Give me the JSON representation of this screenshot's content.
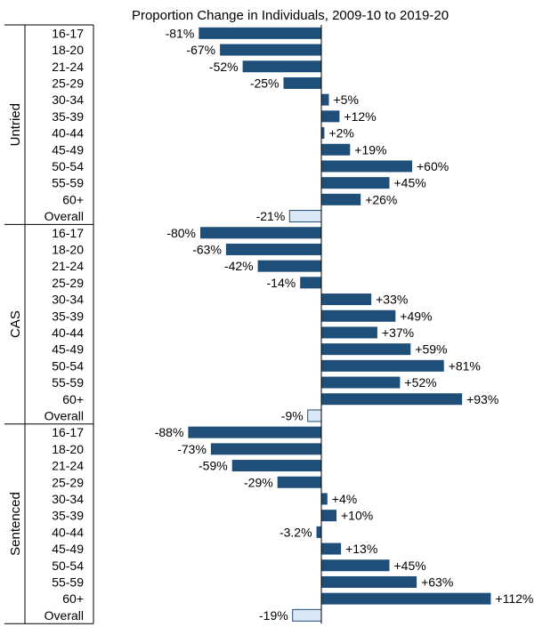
{
  "chart_data": {
    "type": "bar",
    "orientation": "horizontal",
    "title": "Proportion Change in Individuals, 2009-10 to 2019-20",
    "colors": {
      "bar": "#1f4e79",
      "overall_bar": "#dae8f5",
      "overall_border": "#1f4e79"
    },
    "groups": [
      {
        "name": "Untried",
        "categories": [
          "16-17",
          "18-20",
          "21-24",
          "25-29",
          "30-34",
          "35-39",
          "40-44",
          "45-49",
          "50-54",
          "55-59",
          "60+",
          "Overall"
        ],
        "values": [
          -81,
          -67,
          -52,
          -25,
          5,
          12,
          2,
          19,
          60,
          45,
          26,
          -21
        ],
        "labels": [
          "-81%",
          "-67%",
          "-52%",
          "-25%",
          "+5%",
          "+12%",
          "+2%",
          "+19%",
          "+60%",
          "+45%",
          "+26%",
          "-21%"
        ]
      },
      {
        "name": "CAS",
        "categories": [
          "16-17",
          "18-20",
          "21-24",
          "25-29",
          "30-34",
          "35-39",
          "40-44",
          "45-49",
          "50-54",
          "55-59",
          "60+",
          "Overall"
        ],
        "values": [
          -80,
          -63,
          -42,
          -14,
          33,
          49,
          37,
          59,
          81,
          52,
          93,
          -9
        ],
        "labels": [
          "-80%",
          "-63%",
          "-42%",
          "-14%",
          "+33%",
          "+49%",
          "+37%",
          "+59%",
          "+81%",
          "+52%",
          "+93%",
          "-9%"
        ]
      },
      {
        "name": "Sentenced",
        "categories": [
          "16-17",
          "18-20",
          "21-24",
          "25-29",
          "30-34",
          "35-39",
          "40-44",
          "45-49",
          "50-54",
          "55-59",
          "60+",
          "Overall"
        ],
        "values": [
          -88,
          -73,
          -59,
          -29,
          4,
          10,
          -3.2,
          13,
          45,
          63,
          112,
          -19
        ],
        "labels": [
          "-88%",
          "-73%",
          "-59%",
          "-29%",
          "+4%",
          "+10%",
          "-3.2%",
          "+13%",
          "+45%",
          "+63%",
          "+112%",
          "-19%"
        ]
      }
    ]
  }
}
